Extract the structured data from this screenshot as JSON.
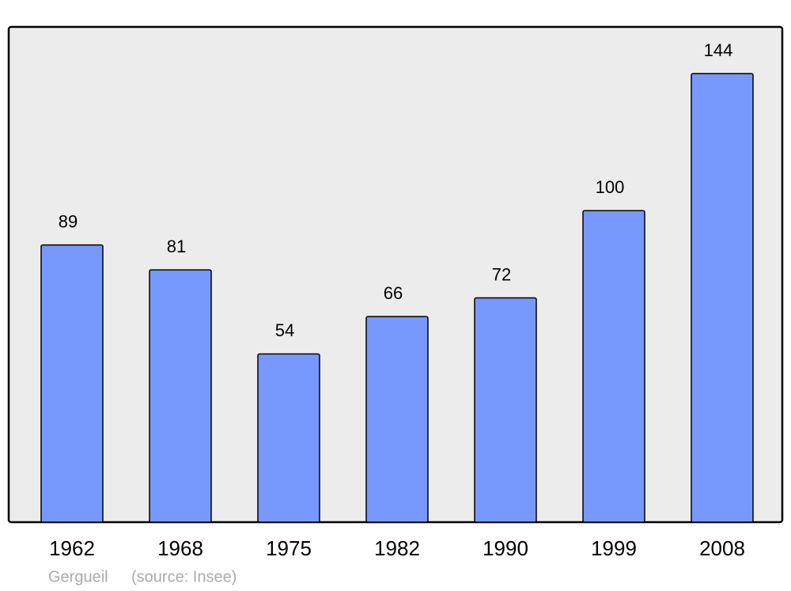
{
  "chart_data": {
    "type": "bar",
    "categories": [
      "1962",
      "1968",
      "1975",
      "1982",
      "1990",
      "1999",
      "2008"
    ],
    "values": [
      89,
      81,
      54,
      66,
      72,
      100,
      144
    ],
    "color": "#7799ff",
    "ylim": [
      0,
      159
    ],
    "caption": "Gergueil",
    "source": "(source: Insee)"
  }
}
